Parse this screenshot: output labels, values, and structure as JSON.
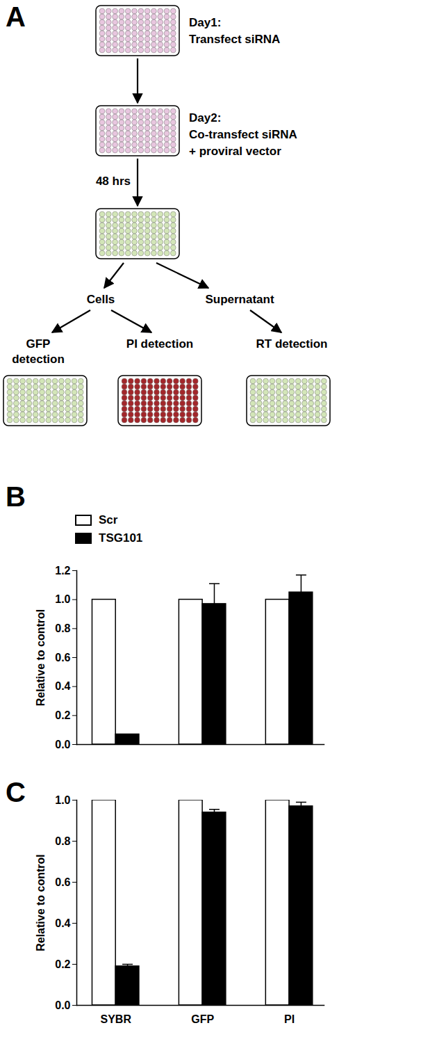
{
  "diagram": {
    "title": "A",
    "steps": [
      {
        "lines": [
          "Day1:",
          "Transfect  siRNA"
        ]
      },
      {
        "lines": [
          "Day2:",
          "Co-transfect  siRNA",
          "+ proviral vector"
        ]
      }
    ],
    "interval": "48 hrs",
    "branches": [
      "Cells",
      "Supernatant"
    ],
    "assays": [
      {
        "lines": [
          "GFP",
          "detection"
        ]
      },
      {
        "lines": [
          "PI detection"
        ]
      },
      {
        "lines": [
          "RT detection"
        ]
      }
    ]
  },
  "chart_data": [
    {
      "type": "bar",
      "title": "B",
      "y_label": "Relative to control",
      "categories": [
        null,
        null,
        null
      ],
      "series": [
        {
          "name": "Scr",
          "color": "#ffffff",
          "values": [
            1,
            1,
            1
          ],
          "errors": [
            null,
            null,
            null
          ]
        },
        {
          "name": "TSG101",
          "color": "#000000",
          "values": [
            0.07,
            0.97,
            1.05
          ],
          "errors": [
            null,
            0.14,
            0.12
          ]
        }
      ],
      "ylim": [
        0,
        1.2
      ],
      "yticks": [
        {
          "value": 0,
          "label": "0.0"
        },
        0.2,
        0.4,
        0.6,
        0.8,
        {
          "value": 1,
          "label": "1.0"
        },
        1.2
      ],
      "legend": "top-left"
    },
    {
      "type": "bar",
      "title": "C",
      "y_label": "Relative to control",
      "categories": [
        "SYBR",
        "GFP",
        "PI"
      ],
      "series": [
        {
          "name": "Scr",
          "color": "#ffffff",
          "values": [
            1,
            1,
            1
          ],
          "errors": [
            null,
            null,
            null
          ]
        },
        {
          "name": "TSG101",
          "color": "#000000",
          "values": [
            0.19,
            0.94,
            0.97
          ],
          "errors": [
            0.01,
            0.015,
            0.02
          ]
        }
      ],
      "ylim": [
        0,
        1
      ],
      "yticks": [
        {
          "value": 0,
          "label": "0.0"
        },
        0.2,
        0.4,
        0.6,
        0.8,
        {
          "value": 1,
          "label": "1.0"
        }
      ],
      "legend": false
    }
  ]
}
